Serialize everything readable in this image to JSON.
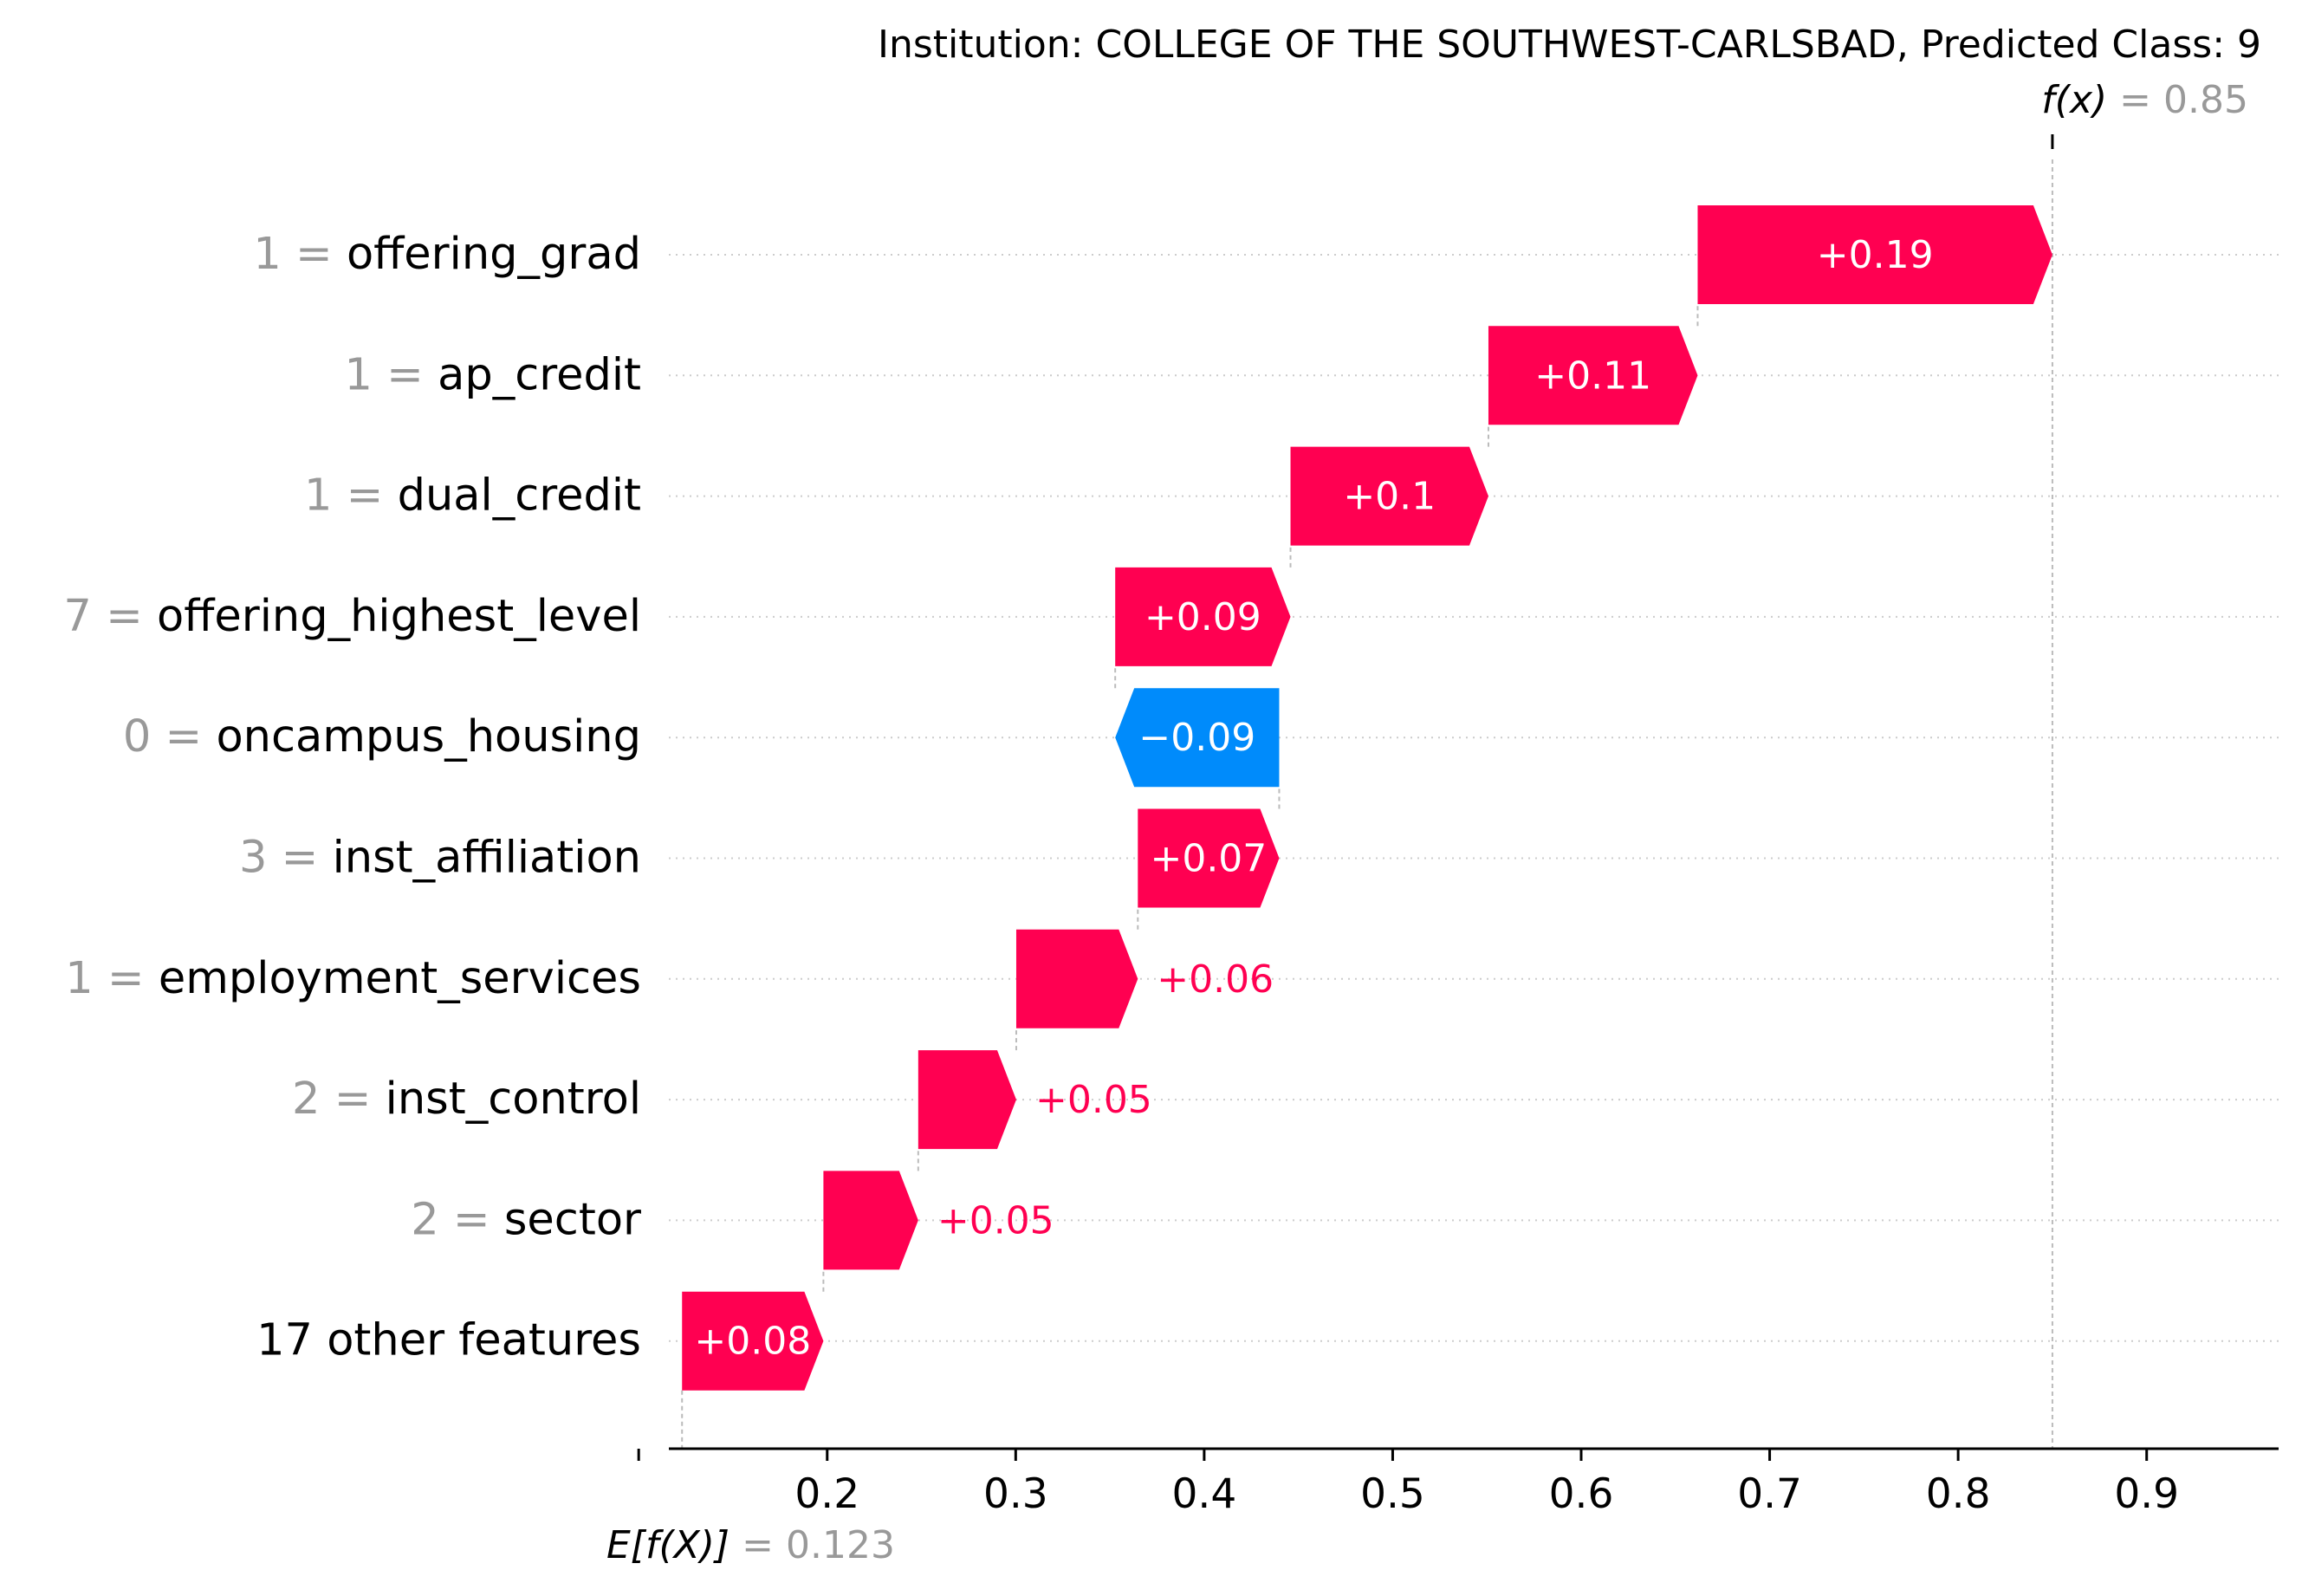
{
  "chart_data": {
    "type": "waterfall",
    "title": "Institution: COLLEGE OF THE SOUTHWEST-CARLSBAD, Predicted Class: 9",
    "fx_label": "f(x)",
    "fx_value": "0.85",
    "fx": 0.85,
    "efx_label": "E[f(X)]",
    "efx_value": "0.123",
    "base_value": 0.123,
    "xlim": [
      0.116,
      0.97
    ],
    "xticks": [
      0.1,
      0.2,
      0.3,
      0.4,
      0.5,
      0.6,
      0.7,
      0.8,
      0.9
    ],
    "xtick_labels": [
      "",
      "0.2",
      "0.3",
      "0.4",
      "0.5",
      "0.6",
      "0.7",
      "0.8",
      "0.9"
    ],
    "colors": {
      "positive": "#ff0051",
      "negative": "#008bfb",
      "value_gray": "#999999",
      "text": "#000000"
    },
    "features": [
      {
        "value": "1",
        "name": "offering_grad",
        "start": 0.6618,
        "end": 0.85,
        "label": "+0.19",
        "label_inside": true
      },
      {
        "value": "1",
        "name": "ap_credit",
        "start": 0.5508,
        "end": 0.6618,
        "label": "+0.11",
        "label_inside": true
      },
      {
        "value": "1",
        "name": "dual_credit",
        "start": 0.4458,
        "end": 0.5508,
        "label": "+0.1",
        "label_inside": true
      },
      {
        "value": "7",
        "name": "offering_highest_level",
        "start": 0.3528,
        "end": 0.4458,
        "label": "+0.09",
        "label_inside": true
      },
      {
        "value": "0",
        "name": "oncampus_housing",
        "start": 0.4398,
        "end": 0.3528,
        "label": "−0.09",
        "label_inside": true
      },
      {
        "value": "3",
        "name": "inst_affiliation",
        "start": 0.3648,
        "end": 0.4398,
        "label": "+0.07",
        "label_inside": true
      },
      {
        "value": "1",
        "name": "employment_services",
        "start": 0.3003,
        "end": 0.3648,
        "label": "+0.06",
        "label_inside": false
      },
      {
        "value": "2",
        "name": "inst_control",
        "start": 0.2483,
        "end": 0.3003,
        "label": "+0.05",
        "label_inside": false
      },
      {
        "value": "2",
        "name": "sector",
        "start": 0.198,
        "end": 0.2483,
        "label": "+0.05",
        "label_inside": false
      },
      {
        "value": "",
        "name": "17 other features",
        "start": 0.123,
        "end": 0.198,
        "label": "+0.08",
        "label_inside": true
      }
    ]
  }
}
